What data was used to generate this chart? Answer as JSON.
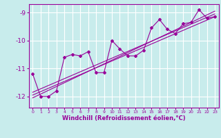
{
  "title": "",
  "xlabel": "Windchill (Refroidissement éolien,°C)",
  "ylabel": "",
  "bg_color": "#c8ecec",
  "line_color": "#990099",
  "grid_color": "#ffffff",
  "xlim": [
    -0.5,
    23.5
  ],
  "ylim": [
    -12.4,
    -8.7
  ],
  "yticks": [
    -12,
    -11,
    -10,
    -9
  ],
  "xticks": [
    0,
    1,
    2,
    3,
    4,
    5,
    6,
    7,
    8,
    9,
    10,
    11,
    12,
    13,
    14,
    15,
    16,
    17,
    18,
    19,
    20,
    21,
    22,
    23
  ],
  "scatter_x": [
    0,
    1,
    2,
    3,
    4,
    5,
    6,
    7,
    8,
    9,
    10,
    11,
    12,
    13,
    14,
    15,
    16,
    17,
    18,
    19,
    20,
    21,
    22,
    23
  ],
  "scatter_y": [
    -11.2,
    -12.0,
    -12.0,
    -11.8,
    -10.6,
    -10.5,
    -10.55,
    -10.4,
    -11.15,
    -11.15,
    -10.0,
    -10.3,
    -10.55,
    -10.55,
    -10.35,
    -9.55,
    -9.25,
    -9.6,
    -9.75,
    -9.4,
    -9.35,
    -8.9,
    -9.2,
    -9.15
  ],
  "line1_x": [
    0,
    23
  ],
  "line1_y": [
    -11.85,
    -9.05
  ],
  "line2_x": [
    0,
    23
  ],
  "line2_y": [
    -11.95,
    -9.15
  ],
  "line3_x": [
    0,
    23
  ],
  "line3_y": [
    -12.05,
    -8.95
  ],
  "xlabel_fontsize": 6.0,
  "ytick_fontsize": 6.5,
  "xtick_fontsize": 4.5
}
